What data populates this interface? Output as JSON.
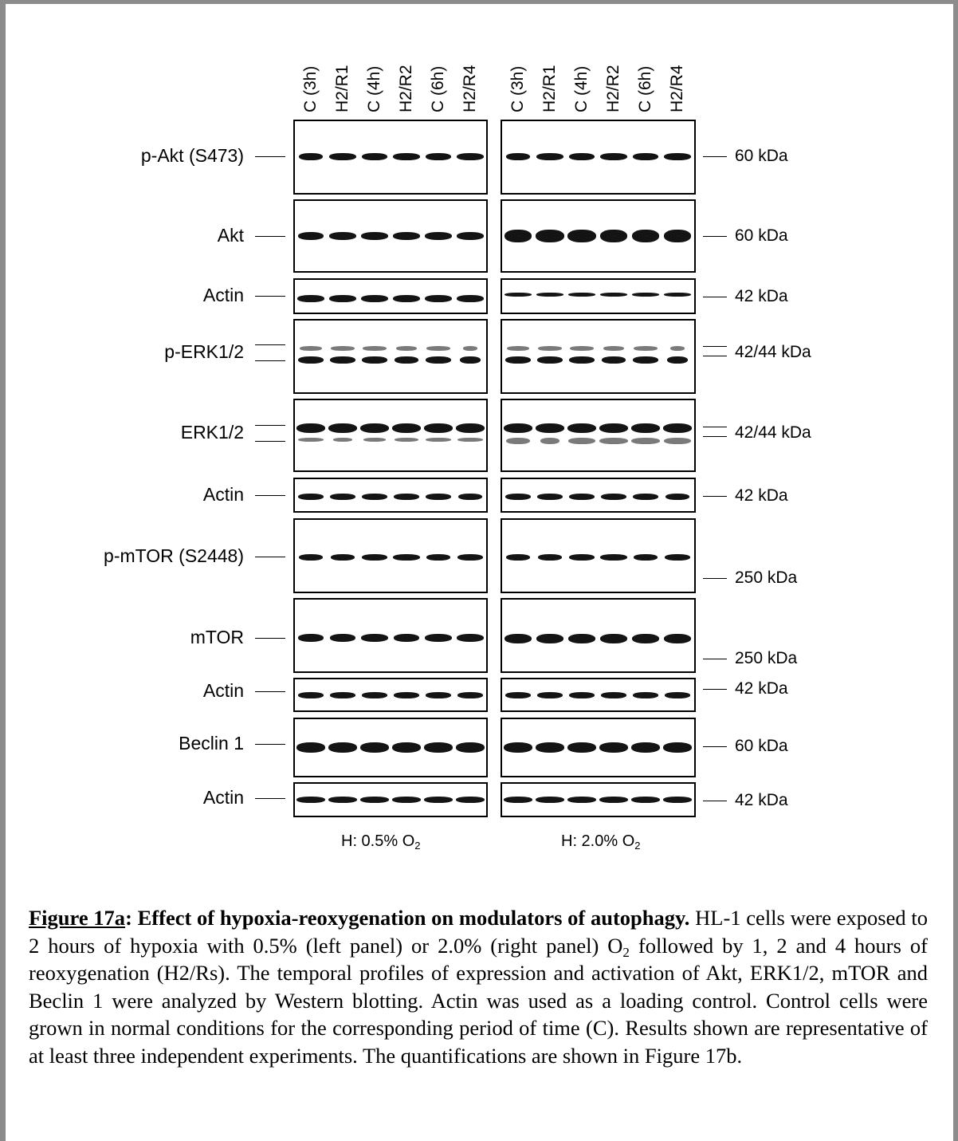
{
  "lanes_left": [
    "C (3h)",
    "H2/R1",
    "C (4h)",
    "H2/R2",
    "C (6h)",
    "H2/R4"
  ],
  "lanes_right": [
    "C (3h)",
    "H2/R1",
    "C (4h)",
    "H2/R2",
    "C (6h)",
    "H2/R4"
  ],
  "rows": [
    {
      "label": "p-Akt (S473)",
      "mw": "60 kDa"
    },
    {
      "label": "Akt",
      "mw": "60 kDa"
    },
    {
      "label": "Actin",
      "mw": "42 kDa"
    },
    {
      "label": "p-ERK1/2",
      "mw": "42/44 kDa"
    },
    {
      "label": "ERK1/2",
      "mw": "42/44 kDa"
    },
    {
      "label": "Actin",
      "mw": "42 kDa"
    },
    {
      "label": "p-mTOR (S2448)",
      "mw": "250 kDa"
    },
    {
      "label": "mTOR",
      "mw": "250 kDa"
    },
    {
      "label": "Actin",
      "mw": "42 kDa"
    },
    {
      "label": "Beclin 1",
      "mw": "60 kDa"
    },
    {
      "label": "Actin",
      "mw": "42 kDa"
    }
  ],
  "conditions": {
    "left": {
      "prefix": "H: 0.5% O",
      "sub": "2"
    },
    "right": {
      "prefix": "H: 2.0% O",
      "sub": "2"
    }
  },
  "caption": {
    "figure_label": "Figure 17a",
    "title": ": Effect of hypoxia-reoxygenation on modulators of autophagy.",
    "body_1": " HL-1 cells were exposed to 2 hours of hypoxia with 0.5% (left panel) or 2.0% (right panel) O",
    "body_sub": "2",
    "body_2": " followed by 1, 2 and 4 hours of reoxygenation (H2/Rs). The temporal profiles of expression and activation of Akt, ERK1/2, mTOR and Beclin 1 were analyzed by Western blotting. Actin was used as a loading control. Control cells were grown in normal conditions for the corresponding period of time (C). Results shown are representative of at least three independent experiments. The quantifications are shown in Figure 17b."
  }
}
